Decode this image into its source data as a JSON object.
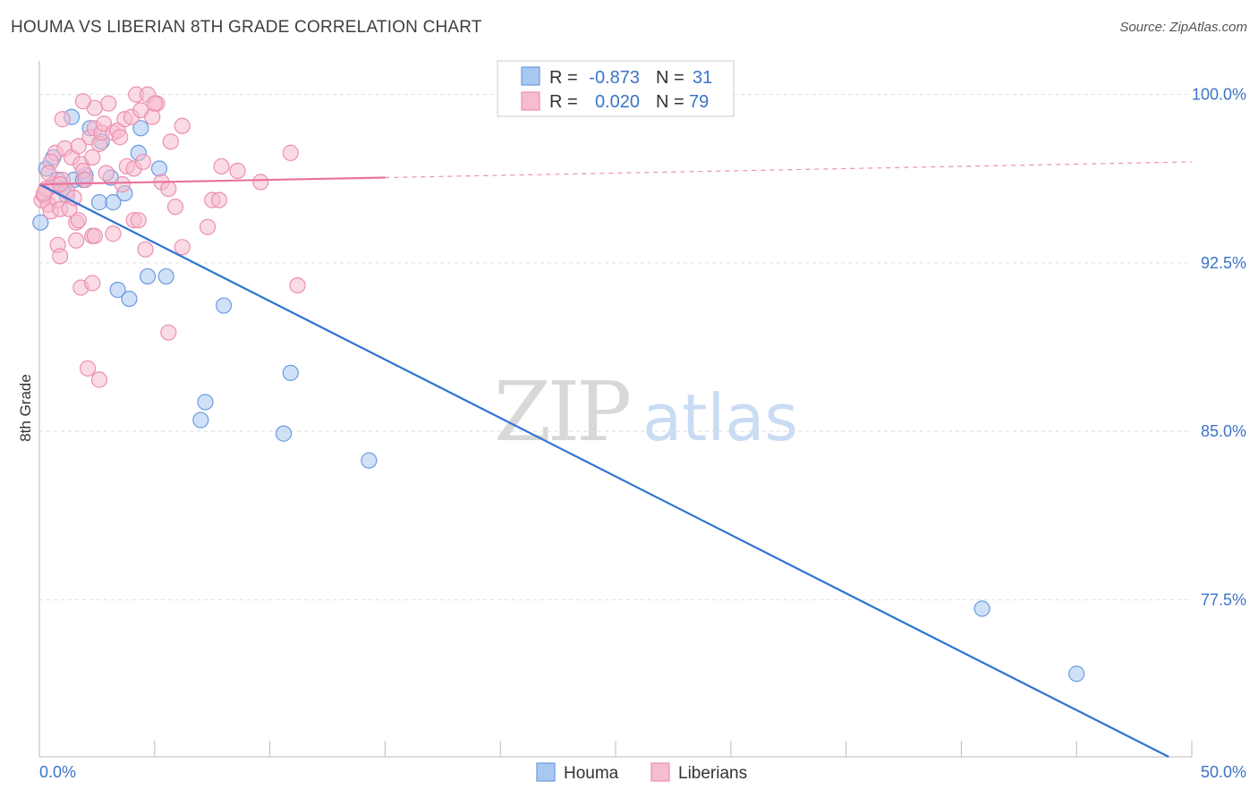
{
  "title": "HOUMA VS LIBERIAN 8TH GRADE CORRELATION CHART",
  "source": "Source: ZipAtlas.com",
  "watermark": {
    "zip": "ZIP",
    "atlas": "atlas"
  },
  "colors": {
    "houma_fill": "#a9c8f0",
    "houma_stroke": "#6a9be0",
    "houma_line": "#2f74d0",
    "liberian_fill": "#f6bcd0",
    "liberian_stroke": "#ec8fb0",
    "liberian_line": "#e8739b",
    "tick_text": "#3a74c9",
    "grid": "#dddddd"
  },
  "chart_data": {
    "type": "scatter",
    "title": "HOUMA VS LIBERIAN 8TH GRADE CORRELATION CHART",
    "xlabel": "",
    "ylabel": "8th Grade",
    "xlim": [
      0,
      50
    ],
    "ylim": [
      70.5,
      101.5
    ],
    "x_tick_labels": [
      "0.0%",
      "50.0%"
    ],
    "y_ticks": [
      77.5,
      85.0,
      92.5,
      100.0
    ],
    "y_tick_labels": [
      "77.5%",
      "85.0%",
      "92.5%",
      "100.0%"
    ],
    "legend": [
      {
        "name": "Houma",
        "R_label": "R =",
        "R": "-0.873",
        "N_label": "N =",
        "N": "31"
      },
      {
        "name": "Liberians",
        "R_label": "R =",
        "R": "0.020",
        "N_label": "N =",
        "N": "79"
      }
    ],
    "series": [
      {
        "name": "Houma",
        "trend": {
          "x0": 0,
          "y0": 96.0,
          "x1": 49,
          "y1": 70.5
        },
        "points": [
          [
            0.05,
            94.3
          ],
          [
            0.3,
            96.7
          ],
          [
            0.6,
            97.2
          ],
          [
            0.8,
            96.2
          ],
          [
            1.0,
            95.8
          ],
          [
            1.2,
            95.5
          ],
          [
            1.5,
            96.2
          ],
          [
            1.9,
            96.2
          ],
          [
            2.0,
            96.4
          ],
          [
            1.4,
            99.0
          ],
          [
            2.2,
            98.5
          ],
          [
            2.7,
            97.9
          ],
          [
            2.6,
            95.2
          ],
          [
            3.1,
            96.3
          ],
          [
            3.2,
            95.2
          ],
          [
            3.7,
            95.6
          ],
          [
            4.3,
            97.4
          ],
          [
            4.4,
            98.5
          ],
          [
            5.2,
            96.7
          ],
          [
            3.4,
            91.3
          ],
          [
            3.9,
            90.9
          ],
          [
            4.7,
            91.9
          ],
          [
            5.5,
            91.9
          ],
          [
            8.0,
            90.6
          ],
          [
            7.2,
            86.3
          ],
          [
            7.0,
            85.5
          ],
          [
            10.6,
            84.9
          ],
          [
            10.9,
            87.6
          ],
          [
            14.3,
            83.7
          ],
          [
            40.9,
            77.1
          ],
          [
            45.0,
            74.2
          ]
        ]
      },
      {
        "name": "Liberians",
        "trend": {
          "x0": 0,
          "y0": 96.0,
          "x1": 50,
          "y1": 97.0,
          "solid_until_x": 15
        },
        "points": [
          [
            0.1,
            95.3
          ],
          [
            0.2,
            95.5
          ],
          [
            0.3,
            95.8
          ],
          [
            0.4,
            95.1
          ],
          [
            0.5,
            94.8
          ],
          [
            0.6,
            96.0
          ],
          [
            0.7,
            97.4
          ],
          [
            0.8,
            95.3
          ],
          [
            0.9,
            94.9
          ],
          [
            1.0,
            96.2
          ],
          [
            0.5,
            97.0
          ],
          [
            1.1,
            97.6
          ],
          [
            1.2,
            95.7
          ],
          [
            1.3,
            94.9
          ],
          [
            1.4,
            97.2
          ],
          [
            1.5,
            95.4
          ],
          [
            1.6,
            94.3
          ],
          [
            1.7,
            97.7
          ],
          [
            1.8,
            96.9
          ],
          [
            1.9,
            96.6
          ],
          [
            2.0,
            96.2
          ],
          [
            2.2,
            98.1
          ],
          [
            2.3,
            97.2
          ],
          [
            2.4,
            98.5
          ],
          [
            2.6,
            97.8
          ],
          [
            2.7,
            98.3
          ],
          [
            2.8,
            98.7
          ],
          [
            2.9,
            96.5
          ],
          [
            3.0,
            99.6
          ],
          [
            3.2,
            98.3
          ],
          [
            3.4,
            98.4
          ],
          [
            3.5,
            98.1
          ],
          [
            3.7,
            98.9
          ],
          [
            3.8,
            96.8
          ],
          [
            4.0,
            99.0
          ],
          [
            4.1,
            96.7
          ],
          [
            4.2,
            100.0
          ],
          [
            4.4,
            99.3
          ],
          [
            4.5,
            97.0
          ],
          [
            4.7,
            100.0
          ],
          [
            4.9,
            99.0
          ],
          [
            5.1,
            99.6
          ],
          [
            5.0,
            99.6
          ],
          [
            5.3,
            96.1
          ],
          [
            5.6,
            95.8
          ],
          [
            5.7,
            97.9
          ],
          [
            6.2,
            98.6
          ],
          [
            2.4,
            99.4
          ],
          [
            1.9,
            99.7
          ],
          [
            6.2,
            93.2
          ],
          [
            7.5,
            95.3
          ],
          [
            7.8,
            95.3
          ],
          [
            7.9,
            96.8
          ],
          [
            8.6,
            96.6
          ],
          [
            9.6,
            96.1
          ],
          [
            10.9,
            97.4
          ],
          [
            1.7,
            94.4
          ],
          [
            1.6,
            93.5
          ],
          [
            2.3,
            93.7
          ],
          [
            2.4,
            93.7
          ],
          [
            3.2,
            93.8
          ],
          [
            4.1,
            94.4
          ],
          [
            4.3,
            94.4
          ],
          [
            4.6,
            93.1
          ],
          [
            7.3,
            94.1
          ],
          [
            0.8,
            93.3
          ],
          [
            0.9,
            92.8
          ],
          [
            1.8,
            91.4
          ],
          [
            2.3,
            91.6
          ],
          [
            5.6,
            89.4
          ],
          [
            11.2,
            91.5
          ],
          [
            2.1,
            87.8
          ],
          [
            2.6,
            87.3
          ],
          [
            1.0,
            98.9
          ],
          [
            0.2,
            95.6
          ],
          [
            0.4,
            96.5
          ],
          [
            0.9,
            96.0
          ],
          [
            3.6,
            96.0
          ],
          [
            5.9,
            95.0
          ]
        ]
      }
    ]
  }
}
